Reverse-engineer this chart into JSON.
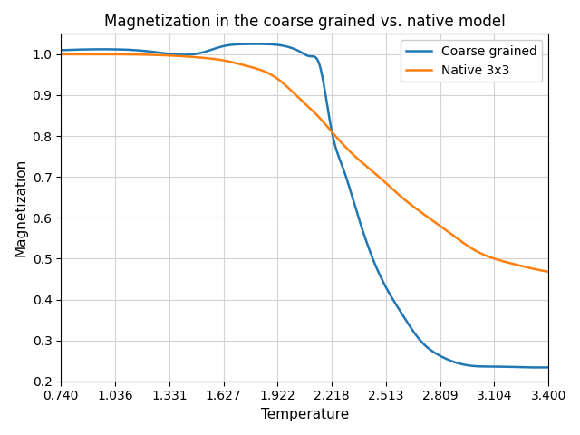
{
  "title": "Magnetization in the coarse grained vs. native model",
  "xlabel": "Temperature",
  "ylabel": "Magnetization",
  "xlim": [
    0.74,
    3.4
  ],
  "ylim": [
    0.2,
    1.05
  ],
  "xticks": [
    0.74,
    1.036,
    1.331,
    1.627,
    1.922,
    2.218,
    2.513,
    2.809,
    3.104,
    3.4
  ],
  "yticks": [
    0.2,
    0.3,
    0.4,
    0.5,
    0.6,
    0.7,
    0.8,
    0.9,
    1.0
  ],
  "coarse_color": "#1f77b4",
  "native_color": "#ff7f0e",
  "legend_labels": [
    "Coarse grained",
    "Native 3x3"
  ],
  "grid": true,
  "coarse_x": [
    0.74,
    0.9,
    1.036,
    1.2,
    1.331,
    1.5,
    1.627,
    1.75,
    1.85,
    1.922,
    1.98,
    2.05,
    2.1,
    2.15,
    2.218,
    2.28,
    2.35,
    2.45,
    2.513,
    2.6,
    2.7,
    2.809,
    2.9,
    3.0,
    3.104,
    3.2,
    3.3,
    3.4
  ],
  "coarse_y": [
    1.01,
    1.012,
    1.012,
    1.008,
    1.001,
    1.003,
    1.02,
    1.025,
    1.025,
    1.023,
    1.018,
    1.005,
    0.995,
    0.975,
    0.81,
    0.72,
    0.62,
    0.49,
    0.43,
    0.365,
    0.3,
    0.262,
    0.245,
    0.237,
    0.236,
    0.235,
    0.234,
    0.234
  ],
  "native_x": [
    0.74,
    0.9,
    1.036,
    1.2,
    1.331,
    1.5,
    1.627,
    1.75,
    1.85,
    1.922,
    1.98,
    2.05,
    2.15,
    2.218,
    2.35,
    2.45,
    2.513,
    2.6,
    2.7,
    2.809,
    2.9,
    3.0,
    3.104,
    3.2,
    3.3,
    3.4
  ],
  "native_y": [
    1.0,
    1.0,
    1.0,
    0.999,
    0.997,
    0.992,
    0.985,
    0.972,
    0.958,
    0.94,
    0.918,
    0.888,
    0.845,
    0.81,
    0.748,
    0.71,
    0.685,
    0.65,
    0.615,
    0.58,
    0.55,
    0.52,
    0.5,
    0.488,
    0.477,
    0.468
  ]
}
